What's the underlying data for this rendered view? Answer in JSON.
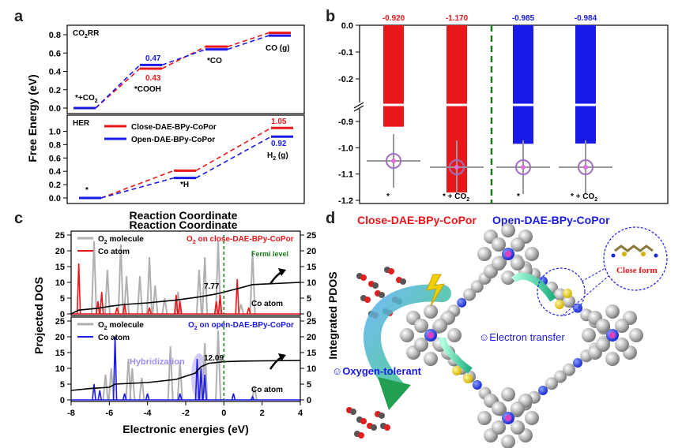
{
  "panels": {
    "a": "a",
    "b": "b",
    "c": "c",
    "d": "d"
  },
  "colors": {
    "red": "#e8171a",
    "blue": "#1a1ae8",
    "gray": "#b0b0b0",
    "green": "#1a7a1a",
    "black": "#000000",
    "purple": "#9b8ef0"
  },
  "chart_data": [
    {
      "id": "a_top",
      "type": "line",
      "panel_title": "CO2RR",
      "ylim": [
        0,
        0.8
      ],
      "yticks": [
        "0.0",
        "0.2",
        "0.4",
        "0.6",
        "0.8"
      ],
      "states": [
        "*+CO2",
        "*COOH",
        "*CO",
        "CO (g)"
      ],
      "series": [
        {
          "name": "Close-DAE-BPy-CoPor",
          "color": "#e8171a",
          "values": [
            0.0,
            0.43,
            0.67,
            0.82
          ]
        },
        {
          "name": "Open-DAE-BPy-CoPor",
          "color": "#1a1ae8",
          "values": [
            0.0,
            0.47,
            0.64,
            0.79
          ]
        }
      ],
      "annotations": [
        "0.47",
        "0.43"
      ]
    },
    {
      "id": "a_bottom",
      "type": "line",
      "panel_title": "HER",
      "ylim": [
        0,
        1.1
      ],
      "yticks": [
        "0.0",
        "0.2",
        "0.4",
        "0.6",
        "0.8",
        "1.0"
      ],
      "states": [
        "*",
        "*H",
        "H2 (g)"
      ],
      "series": [
        {
          "name": "Close-DAE-BPy-CoPor",
          "color": "#e8171a",
          "values": [
            0.0,
            0.41,
            1.05
          ]
        },
        {
          "name": "Open-DAE-BPy-CoPor",
          "color": "#1a1ae8",
          "values": [
            0.0,
            0.3,
            0.92
          ]
        }
      ],
      "annotations": [
        "1.05",
        "0.92"
      ],
      "legend": [
        "Close-DAE-BPy-CoPor",
        "Open-DAE-BPy-CoPor"
      ],
      "ylabel": "Free Energy (eV)",
      "xlabel": "Reaction Coordinate"
    },
    {
      "id": "b",
      "type": "bar",
      "categories": [
        "*",
        "* + CO2",
        "*",
        "* + CO2"
      ],
      "values": [
        -0.92,
        -1.17,
        -0.985,
        -0.984
      ],
      "value_labels": [
        "-0.920",
        "-1.170",
        "-0.985",
        "-0.984"
      ],
      "colors": [
        "#e8171a",
        "#e8171a",
        "#1a1ae8",
        "#1a1ae8"
      ],
      "yticks_top": [
        "0.0",
        "-0.1",
        "-0.2"
      ],
      "yticks_bottom": [
        "-0.9",
        "-1.0",
        "-1.1",
        "-1.2"
      ],
      "axis_break": true,
      "group_labels": [
        "Close-DAE-BPy-CoPor",
        "Open-DAE-BPy-CoPor"
      ]
    },
    {
      "id": "c_top",
      "type": "line",
      "title": "O2 on close-DAE-BPy-CoPor",
      "legend": [
        "O2 molecule",
        "Co atom"
      ],
      "xlim": [
        -8,
        4
      ],
      "ylim": [
        0,
        25
      ],
      "yticks": [
        "0",
        "5",
        "10",
        "15",
        "20",
        "25"
      ],
      "annotation_value": "7.77",
      "annotation_label": "Co atom",
      "fermi_label": "Fermi level",
      "peaks_co": [
        [
          -7.6,
          16
        ],
        [
          -6.6,
          4
        ],
        [
          -6.4,
          7
        ],
        [
          -5.6,
          2
        ],
        [
          -5.2,
          3
        ],
        [
          -3.9,
          2
        ],
        [
          -2.5,
          6
        ],
        [
          -2.3,
          4
        ],
        [
          -0.4,
          4
        ],
        [
          -0.2,
          6
        ],
        [
          0.7,
          11
        ],
        [
          1.3,
          2
        ]
      ],
      "peaks_o2": [
        [
          -6.8,
          23
        ],
        [
          -6.1,
          14
        ],
        [
          -5.4,
          22
        ],
        [
          -5.1,
          12
        ],
        [
          -4.4,
          12
        ],
        [
          -3.9,
          18
        ],
        [
          -3.6,
          9
        ],
        [
          -3.1,
          5
        ],
        [
          -2.4,
          7
        ],
        [
          -1.3,
          14
        ],
        [
          -1.0,
          18
        ],
        [
          -0.3,
          23
        ],
        [
          0.9,
          3
        ],
        [
          1.5,
          20
        ]
      ],
      "integrated": [
        [
          -8,
          0
        ],
        [
          -7.6,
          1.2
        ],
        [
          -6.6,
          1.8
        ],
        [
          -6.0,
          2.4
        ],
        [
          -5.2,
          3.0
        ],
        [
          -4.0,
          3.5
        ],
        [
          -2.5,
          4.4
        ],
        [
          -1.5,
          5.2
        ],
        [
          -0.5,
          6.2
        ],
        [
          0,
          6.9
        ],
        [
          0.7,
          8.0
        ],
        [
          1.5,
          9.3
        ],
        [
          4,
          10.0
        ]
      ]
    },
    {
      "id": "c_bottom",
      "type": "line",
      "title": "O2 on open-DAE-BPy-CoPor",
      "legend": [
        "O2 molecule",
        "Co atom"
      ],
      "xlim": [
        -8,
        4
      ],
      "xticks": [
        "-8",
        "-6",
        "-4",
        "-2",
        "0",
        "2",
        "4"
      ],
      "ylim": [
        0,
        25
      ],
      "yticks": [
        "0",
        "5",
        "10",
        "15",
        "20",
        "25"
      ],
      "annotation_value": "12.09",
      "annotation_label": "Co atom",
      "hybrid_label": "Hybridization",
      "peaks_co": [
        [
          -6.8,
          5
        ],
        [
          -6.5,
          3
        ],
        [
          -5.7,
          20
        ],
        [
          -5.2,
          2
        ],
        [
          -4.0,
          2
        ],
        [
          -2.3,
          2
        ],
        [
          -1.4,
          13
        ],
        [
          -1.2,
          10
        ],
        [
          -1.0,
          8
        ],
        [
          0.5,
          2
        ],
        [
          1.5,
          1
        ]
      ],
      "peaks_o2": [
        [
          -6.2,
          8
        ],
        [
          -5.9,
          10
        ],
        [
          -5.0,
          13
        ],
        [
          -4.8,
          10
        ],
        [
          -4.3,
          7
        ],
        [
          -2.8,
          17
        ],
        [
          -2.3,
          12
        ],
        [
          -1.0,
          18
        ],
        [
          -0.3,
          22
        ],
        [
          1.6,
          4
        ]
      ],
      "integrated": [
        [
          -8,
          3.0
        ],
        [
          -7,
          3.6
        ],
        [
          -6,
          4.0
        ],
        [
          -5.7,
          5.0
        ],
        [
          -4,
          5.5
        ],
        [
          -2.5,
          6.5
        ],
        [
          -1.5,
          8.5
        ],
        [
          -1.2,
          10.5
        ],
        [
          -0.8,
          11.6
        ],
        [
          0,
          12.1
        ],
        [
          1,
          12.3
        ],
        [
          4,
          12.5
        ]
      ],
      "ylabel_left": "Projected DOS",
      "ylabel_right": "Integrated PDOS",
      "xlabel": "Electronic energies (eV)"
    }
  ],
  "panel_d": {
    "close_form": "Close form",
    "electron_transfer": "Electron transfer",
    "oxygen_tolerant": "Oxygen-tolerant"
  }
}
